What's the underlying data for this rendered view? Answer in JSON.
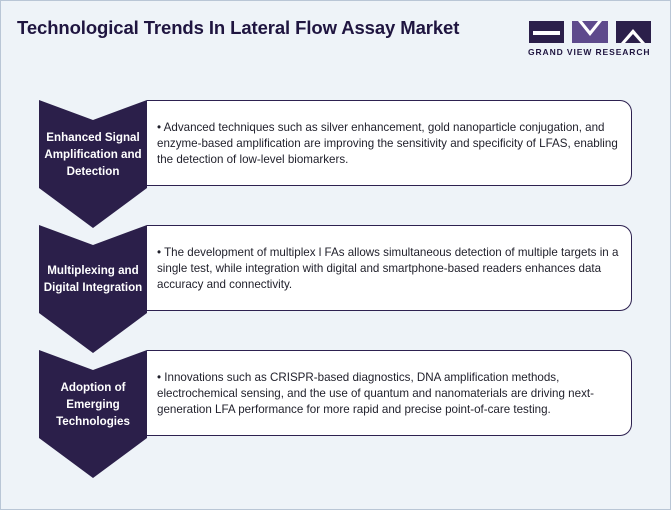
{
  "title": "Technological Trends In Lateral Flow Assay Market",
  "logo": {
    "text": "GRAND VIEW RESEARCH",
    "colors": [
      "#2b1f4a",
      "#5e4a8c",
      "#2b1f4a"
    ]
  },
  "colors": {
    "chevron": "#2b1f4a",
    "background": "#eef3f8",
    "border": "#2d2150"
  },
  "trends": [
    {
      "label": "Enhanced Signal Amplification and Detection",
      "text": "• Advanced techniques such as silver enhancement, gold nanoparticle conjugation, and enzyme-based amplification are improving the sensitivity and specificity of LFAS, enabling the detection of low-level biomarkers."
    },
    {
      "label": "Multiplexing and Digital Integration",
      "text": "• The development of multiplex l FAs allows simultaneous detection of multiple targets in a single test, while integration with digital and smartphone-based readers enhances data accuracy and connectivity."
    },
    {
      "label": "Adoption of Emerging Technologies",
      "text": "• Innovations such as CRISPR-based diagnostics, DNA amplification methods, electrochemical sensing, and the use of quantum and nanomaterials are driving next-generation LFA performance for more rapid and precise point-of-care testing."
    }
  ]
}
